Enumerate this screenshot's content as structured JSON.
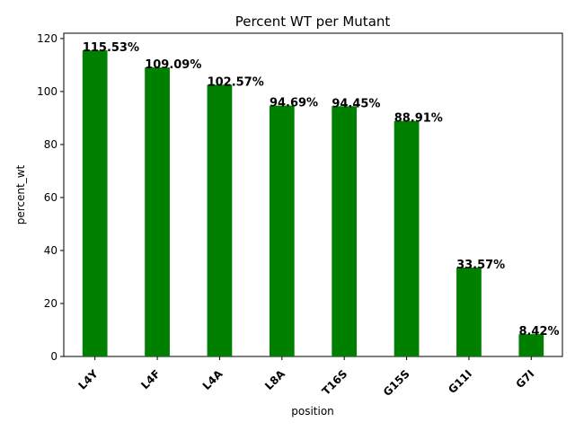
{
  "chart_data": {
    "type": "bar",
    "title": "Percent WT per Mutant",
    "xlabel": "position",
    "ylabel": "percent_wt",
    "categories": [
      "L4Y",
      "L4F",
      "L4A",
      "L8A",
      "T16S",
      "G15S",
      "G11I",
      "G7I"
    ],
    "values": [
      115.53,
      109.09,
      102.57,
      94.69,
      94.45,
      88.91,
      33.57,
      8.42
    ],
    "data_labels": [
      "115.53%",
      "109.09%",
      "102.57%",
      "94.69%",
      "94.45%",
      "88.91%",
      "33.57%",
      "8.42%"
    ],
    "ylim": [
      0,
      122
    ],
    "yticks": [
      0,
      20,
      40,
      60,
      80,
      100,
      120
    ],
    "ytick_labels": [
      "0",
      "20",
      "40",
      "60",
      "80",
      "100",
      "120"
    ],
    "bar_color": "#008000",
    "grid": false,
    "legend": "none"
  }
}
